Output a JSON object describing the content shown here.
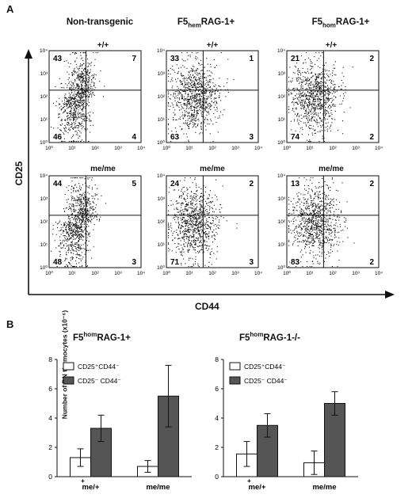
{
  "panelA": {
    "letter": "A",
    "columns": [
      "Non-transgenic",
      "F5hemRAG-1+",
      "F5homRAG-1+"
    ],
    "column_parts": [
      {
        "main": "Non-transgenic",
        "sup": "",
        "rest": ""
      },
      {
        "main": "F5",
        "sup": "hem",
        "rest": "RAG-1+"
      },
      {
        "main": "F5",
        "sup": "hom",
        "rest": "RAG-1+"
      }
    ],
    "rows": [
      "+/+",
      "me/me"
    ],
    "y_axis_label": "CD25",
    "x_axis_label": "CD44",
    "tick_labels": [
      "10⁰",
      "10¹",
      "10²",
      "10³",
      "10⁴"
    ],
    "quadrants": [
      [
        [
          43,
          7,
          46,
          4
        ],
        [
          33,
          1,
          63,
          3
        ],
        [
          21,
          2,
          74,
          2
        ]
      ],
      [
        [
          44,
          5,
          48,
          3
        ],
        [
          24,
          2,
          71,
          3
        ],
        [
          13,
          2,
          83,
          2
        ]
      ]
    ]
  },
  "panelB": {
    "letter": "B",
    "y_axis_label": "Number of DN thymocytes (x10⁻⁶)",
    "legend": [
      {
        "label": "CD25⁺CD44⁻",
        "color": "#ffffff"
      },
      {
        "label": "CD25⁻ CD44⁻",
        "color": "#555555"
      }
    ],
    "charts_title_parts": [
      {
        "main": "F5",
        "sup": "hom",
        "rest": "RAG-1+"
      },
      {
        "main": "F5",
        "sup": "hom",
        "rest": "RAG-1-/-"
      }
    ]
  },
  "chart_data": [
    {
      "type": "bar",
      "title": "F5homRAG-1+",
      "categories": [
        "me/+",
        "me/me"
      ],
      "category_sup": [
        "+",
        ""
      ],
      "ylabel": "Number of DN thymocytes (x10⁻⁶)",
      "ylim": [
        0,
        8
      ],
      "yticks": [
        0,
        2,
        4,
        6,
        8
      ],
      "series": [
        {
          "name": "CD25⁺CD44⁻",
          "values": [
            1.3,
            0.7
          ],
          "errors": [
            0.6,
            0.4
          ]
        },
        {
          "name": "CD25⁻ CD44⁻",
          "values": [
            3.3,
            5.5
          ],
          "errors": [
            0.9,
            2.1
          ]
        }
      ]
    },
    {
      "type": "bar",
      "title": "F5homRAG-1-/-",
      "categories": [
        "me/+",
        "me/me"
      ],
      "category_sup": [
        "+",
        ""
      ],
      "ylabel": "",
      "ylim": [
        0,
        8
      ],
      "yticks": [
        0,
        2,
        4,
        6,
        8
      ],
      "series": [
        {
          "name": "CD25⁺CD44⁻",
          "values": [
            1.55,
            0.95
          ],
          "errors": [
            0.85,
            0.8
          ]
        },
        {
          "name": "CD25⁻ CD44⁻",
          "values": [
            3.5,
            5.0
          ],
          "errors": [
            0.8,
            0.8
          ]
        }
      ]
    }
  ]
}
